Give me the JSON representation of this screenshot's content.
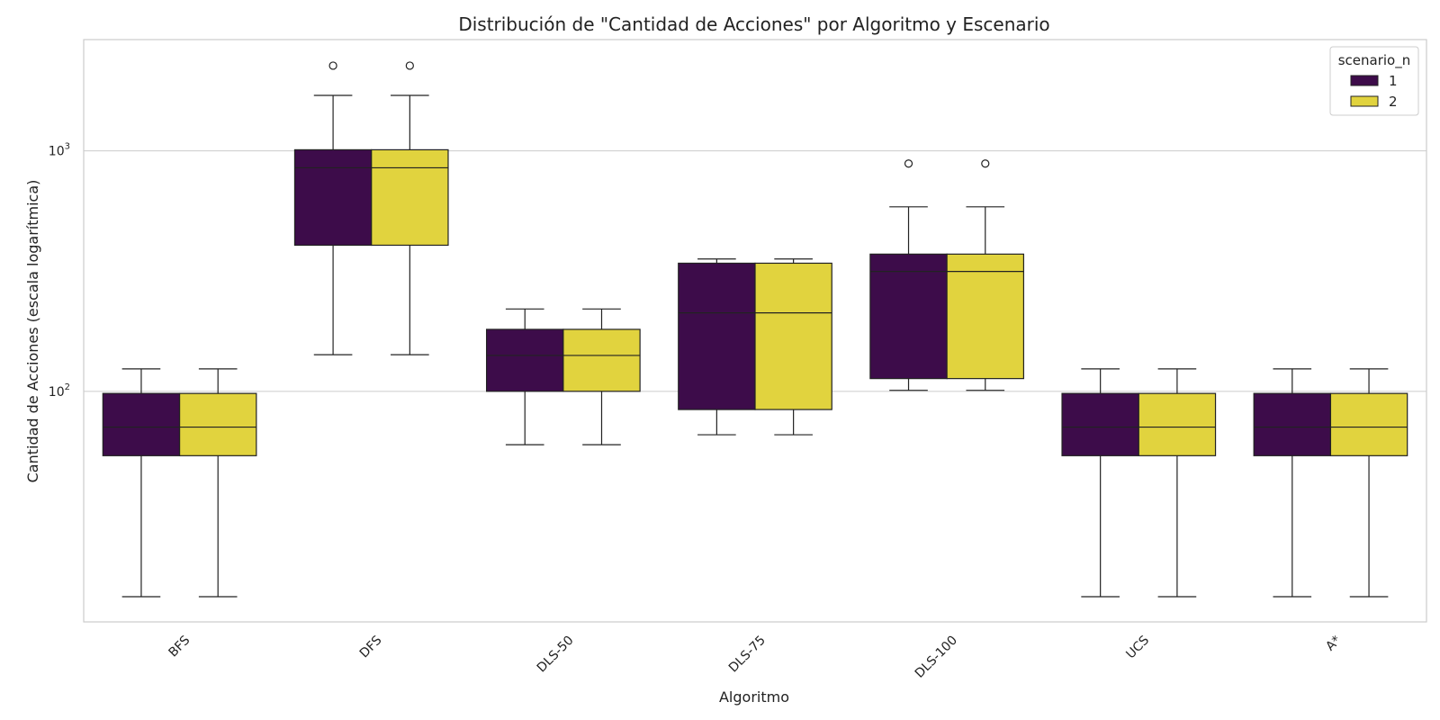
{
  "chart_data": {
    "type": "box",
    "title": "Distribución de \"Cantidad de Acciones\" por Algoritmo y Escenario",
    "xlabel": "Algoritmo",
    "ylabel": "Cantidad de Acciones (escala logarítmica)",
    "yscale": "log",
    "ylim": [
      11,
      2900
    ],
    "y_ticks": [
      {
        "value": 100,
        "base": "10",
        "exp": "2"
      },
      {
        "value": 1000,
        "base": "10",
        "exp": "3"
      }
    ],
    "grid": "horizontal",
    "legend": {
      "title": "scenario_n",
      "position": "top-right"
    },
    "categories": [
      "BFS",
      "DFS",
      "DLS-50",
      "DLS-75",
      "DLS-100",
      "UCS",
      "A*"
    ],
    "series": [
      {
        "name": "1",
        "color": "#3d0c4a",
        "boxes": [
          {
            "whislo": 14,
            "q1": 54,
            "median": 71,
            "q3": 98,
            "whishi": 124,
            "fliers": []
          },
          {
            "whislo": 142,
            "q1": 405,
            "median": 850,
            "q3": 1010,
            "whishi": 1700,
            "fliers": [
              2260
            ]
          },
          {
            "whislo": 60,
            "q1": 100,
            "median": 141,
            "q3": 181,
            "whishi": 220,
            "fliers": []
          },
          {
            "whislo": 66,
            "q1": 84,
            "median": 212,
            "q3": 341,
            "whishi": 355,
            "fliers": []
          },
          {
            "whislo": 101,
            "q1": 113,
            "median": 315,
            "q3": 372,
            "whishi": 585,
            "fliers": [
              885
            ]
          },
          {
            "whislo": 14,
            "q1": 54,
            "median": 71,
            "q3": 98,
            "whishi": 124,
            "fliers": []
          },
          {
            "whislo": 14,
            "q1": 54,
            "median": 71,
            "q3": 98,
            "whishi": 124,
            "fliers": []
          }
        ]
      },
      {
        "name": "2",
        "color": "#e1d33e",
        "boxes": [
          {
            "whislo": 14,
            "q1": 54,
            "median": 71,
            "q3": 98,
            "whishi": 124,
            "fliers": []
          },
          {
            "whislo": 142,
            "q1": 405,
            "median": 850,
            "q3": 1010,
            "whishi": 1700,
            "fliers": [
              2260
            ]
          },
          {
            "whislo": 60,
            "q1": 100,
            "median": 141,
            "q3": 181,
            "whishi": 220,
            "fliers": []
          },
          {
            "whislo": 66,
            "q1": 84,
            "median": 212,
            "q3": 341,
            "whishi": 355,
            "fliers": []
          },
          {
            "whislo": 101,
            "q1": 113,
            "median": 315,
            "q3": 372,
            "whishi": 585,
            "fliers": [
              885
            ]
          },
          {
            "whislo": 14,
            "q1": 54,
            "median": 71,
            "q3": 98,
            "whishi": 124,
            "fliers": []
          },
          {
            "whislo": 14,
            "q1": 54,
            "median": 71,
            "q3": 98,
            "whishi": 124,
            "fliers": []
          }
        ]
      }
    ]
  }
}
